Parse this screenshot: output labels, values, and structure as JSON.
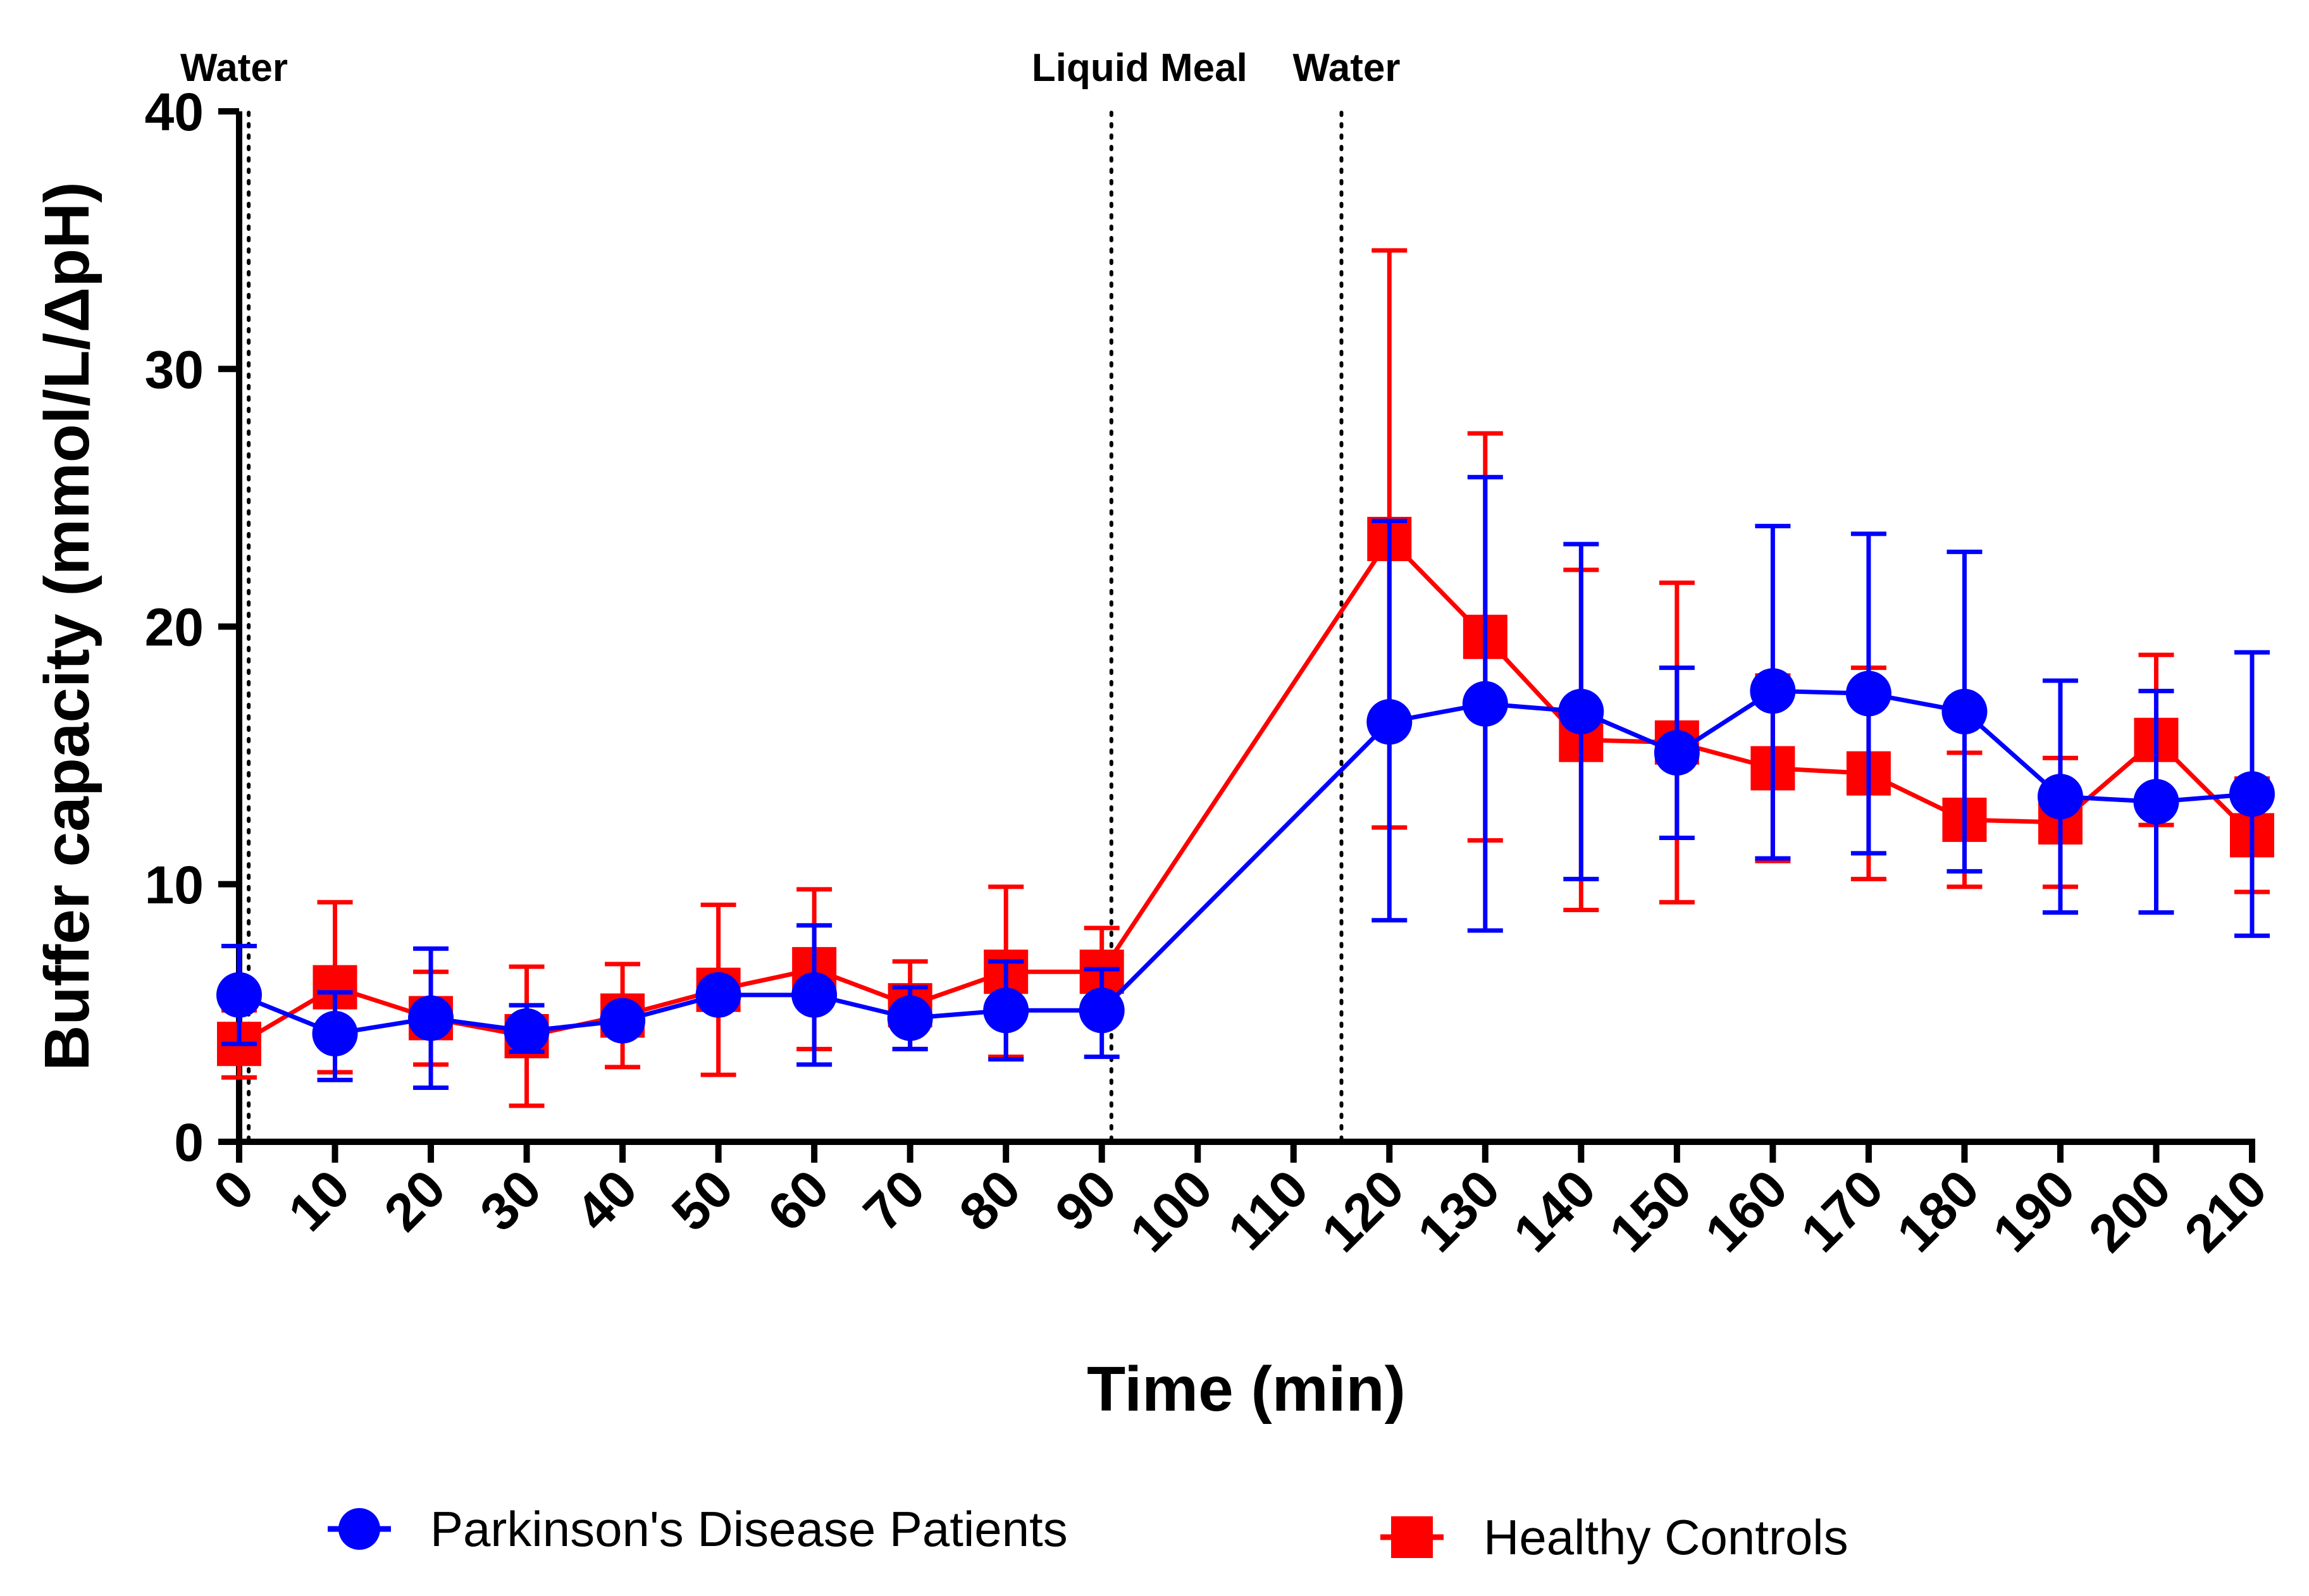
{
  "chart_data": {
    "type": "line",
    "xlabel": "Time (min)",
    "ylabel": "Buffer capacity (mmol/L/ΔpH)",
    "ylim": [
      0,
      40
    ],
    "xlim": [
      0,
      210
    ],
    "y_ticks": [
      0,
      10,
      20,
      30,
      40
    ],
    "x_ticks": [
      0,
      10,
      20,
      30,
      40,
      50,
      60,
      70,
      80,
      90,
      100,
      110,
      120,
      130,
      140,
      150,
      160,
      170,
      180,
      190,
      200,
      210
    ],
    "annotations": [
      {
        "label": "Water",
        "x": 1
      },
      {
        "label": "Liquid Meal",
        "x": 91
      },
      {
        "label": "Water",
        "x": 115
      }
    ],
    "series": [
      {
        "name": "Parkinson's Disease Patients",
        "color": "#0000ff",
        "marker": "circle",
        "segments": [
          {
            "x": [
              0,
              10,
              20,
              30,
              40,
              50,
              60,
              70,
              80,
              90
            ],
            "y": [
              5.7,
              4.2,
              4.8,
              4.3,
              4.7,
              5.7,
              5.7,
              4.8,
              5.1,
              5.1
            ],
            "err_up": [
              1.9,
              1.6,
              2.7,
              1.0,
              0.4,
              0.4,
              2.7,
              1.2,
              1.9,
              1.6
            ],
            "err_down": [
              1.9,
              1.8,
              2.7,
              0.8,
              0.3,
              0.3,
              2.7,
              1.2,
              1.9,
              1.8
            ]
          },
          {
            "x": [
              120,
              130,
              140,
              150,
              160,
              170,
              180,
              190,
              200,
              210
            ],
            "y": [
              16.3,
              17.0,
              16.7,
              15.1,
              17.5,
              17.4,
              16.7,
              13.4,
              13.2,
              13.5
            ],
            "err_up": [
              7.8,
              8.8,
              6.5,
              3.3,
              6.4,
              6.2,
              6.2,
              4.5,
              4.3,
              5.5
            ],
            "err_down": [
              7.7,
              8.8,
              6.5,
              3.3,
              6.5,
              6.2,
              6.2,
              4.5,
              4.3,
              5.5
            ]
          }
        ]
      },
      {
        "name": "Healthy Controls",
        "color": "#ff0000",
        "marker": "square",
        "segments": [
          {
            "x": [
              0,
              10,
              20,
              30,
              40,
              50,
              60,
              70,
              80,
              90
            ],
            "y": [
              3.8,
              6.0,
              4.8,
              4.1,
              4.9,
              5.9,
              6.7,
              5.3,
              6.6,
              6.6
            ],
            "err_up": [
              1.3,
              3.3,
              1.8,
              2.7,
              2.0,
              3.3,
              3.1,
              1.7,
              3.3,
              1.7
            ],
            "err_down": [
              1.3,
              3.3,
              1.8,
              2.7,
              2.0,
              3.3,
              3.1,
              1.7,
              3.3,
              1.7
            ]
          },
          {
            "x": [
              120,
              130,
              140,
              150,
              160,
              170,
              180,
              190,
              200,
              210
            ],
            "y": [
              23.4,
              19.6,
              15.6,
              15.5,
              14.5,
              14.3,
              12.5,
              12.4,
              15.6,
              11.9
            ],
            "err_up": [
              11.2,
              7.9,
              6.6,
              6.2,
              3.6,
              4.1,
              2.6,
              2.5,
              3.3,
              2.2
            ],
            "err_down": [
              11.2,
              7.9,
              6.6,
              6.2,
              3.6,
              4.1,
              2.6,
              2.5,
              3.3,
              2.2
            ]
          }
        ]
      }
    ],
    "legend": {
      "placement": "bottom",
      "entries": [
        "Parkinson's Disease Patients",
        "Healthy Controls"
      ]
    }
  }
}
